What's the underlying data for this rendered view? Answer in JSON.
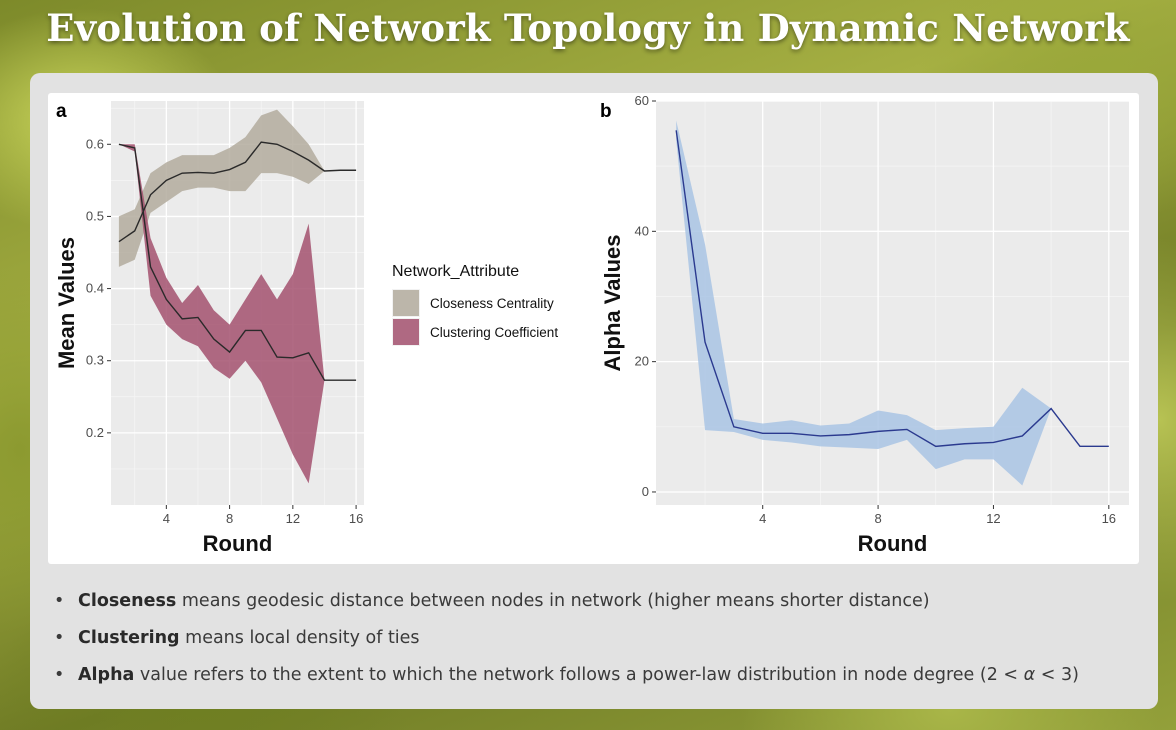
{
  "slide": {
    "title": "Evolution of Network Topology in Dynamic Network"
  },
  "bullets": [
    {
      "term": "Closeness",
      "text": " means geodesic distance between nodes in network (higher means shorter distance)"
    },
    {
      "term": "Clustering",
      "text": " means local density of ties"
    },
    {
      "term": "Alpha",
      "text": " value refers to the extent to which the network follows a power-law distribution in node degree (2 < ",
      "symbol": "α",
      "after": " < 3)"
    }
  ],
  "chart_data": [
    {
      "type": "line",
      "panel_label": "a",
      "xlabel": "Round",
      "ylabel": "Mean Values",
      "xlim": [
        0.5,
        16.5
      ],
      "ylim": [
        0.1,
        0.66
      ],
      "xticks": [
        4,
        8,
        12,
        16
      ],
      "yticks": [
        0.2,
        0.3,
        0.4,
        0.5,
        0.6
      ],
      "ytick_labels": [
        "0.2",
        "0.3",
        "0.4",
        "0.5",
        "0.6"
      ],
      "grid": true,
      "legend_title": "Network_Attribute",
      "legend_position": "right",
      "series": [
        {
          "name": "Closeness Centrality",
          "color": "#b3ab9e",
          "x": [
            1,
            2,
            3,
            4,
            5,
            6,
            7,
            8,
            9,
            10,
            11,
            12,
            13,
            14,
            15,
            16
          ],
          "values": [
            0.465,
            0.48,
            0.53,
            0.55,
            0.56,
            0.561,
            0.56,
            0.565,
            0.575,
            0.603,
            0.6,
            0.59,
            0.578,
            0.563,
            0.564,
            0.564
          ],
          "lower": [
            0.43,
            0.44,
            0.505,
            0.52,
            0.535,
            0.54,
            0.54,
            0.535,
            0.535,
            0.56,
            0.56,
            0.555,
            0.545,
            0.563,
            0.564,
            0.564
          ],
          "upper": [
            0.5,
            0.51,
            0.56,
            0.575,
            0.585,
            0.585,
            0.585,
            0.595,
            0.61,
            0.64,
            0.648,
            0.625,
            0.6,
            0.563,
            0.564,
            0.564
          ]
        },
        {
          "name": "Clustering Coefficient",
          "color": "#a3516f",
          "x": [
            1,
            2,
            3,
            4,
            5,
            6,
            7,
            8,
            9,
            10,
            11,
            12,
            13,
            14,
            15,
            16
          ],
          "values": [
            0.6,
            0.595,
            0.43,
            0.385,
            0.358,
            0.36,
            0.33,
            0.312,
            0.342,
            0.342,
            0.305,
            0.304,
            0.311,
            0.273,
            0.273,
            0.273
          ],
          "lower": [
            0.6,
            0.59,
            0.39,
            0.35,
            0.33,
            0.32,
            0.29,
            0.275,
            0.3,
            0.27,
            0.22,
            0.17,
            0.13,
            0.273,
            0.273,
            0.273
          ],
          "upper": [
            0.6,
            0.6,
            0.47,
            0.415,
            0.38,
            0.405,
            0.37,
            0.35,
            0.385,
            0.42,
            0.385,
            0.42,
            0.49,
            0.273,
            0.273,
            0.273
          ]
        }
      ]
    },
    {
      "type": "line",
      "panel_label": "b",
      "xlabel": "Round",
      "ylabel": "Alpha Values",
      "xlim": [
        0.3,
        16.7
      ],
      "ylim": [
        -2,
        60
      ],
      "xticks": [
        4,
        8,
        12,
        16
      ],
      "yticks": [
        0,
        20,
        40,
        60
      ],
      "ytick_labels": [
        "0",
        "20",
        "40",
        "60"
      ],
      "grid": true,
      "series": [
        {
          "color": "#2b3a8f",
          "band_color": "#a9c4e4",
          "x": [
            1,
            2,
            3,
            4,
            5,
            6,
            7,
            8,
            9,
            10,
            11,
            12,
            13,
            14,
            15,
            16
          ],
          "values": [
            55.5,
            23,
            10,
            9,
            9,
            8.6,
            8.8,
            9.3,
            9.6,
            7,
            7.4,
            7.6,
            8.6,
            12.8,
            7,
            7
          ],
          "lower": [
            54,
            9.5,
            9.2,
            8,
            7.6,
            7,
            6.8,
            6.6,
            8,
            3.5,
            5,
            5,
            1,
            12.8,
            7,
            7
          ],
          "upper": [
            57,
            38,
            11.2,
            10.5,
            11,
            10.2,
            10.5,
            12.5,
            11.8,
            9.5,
            9.8,
            10,
            16,
            12.8,
            7,
            7
          ]
        }
      ]
    }
  ]
}
